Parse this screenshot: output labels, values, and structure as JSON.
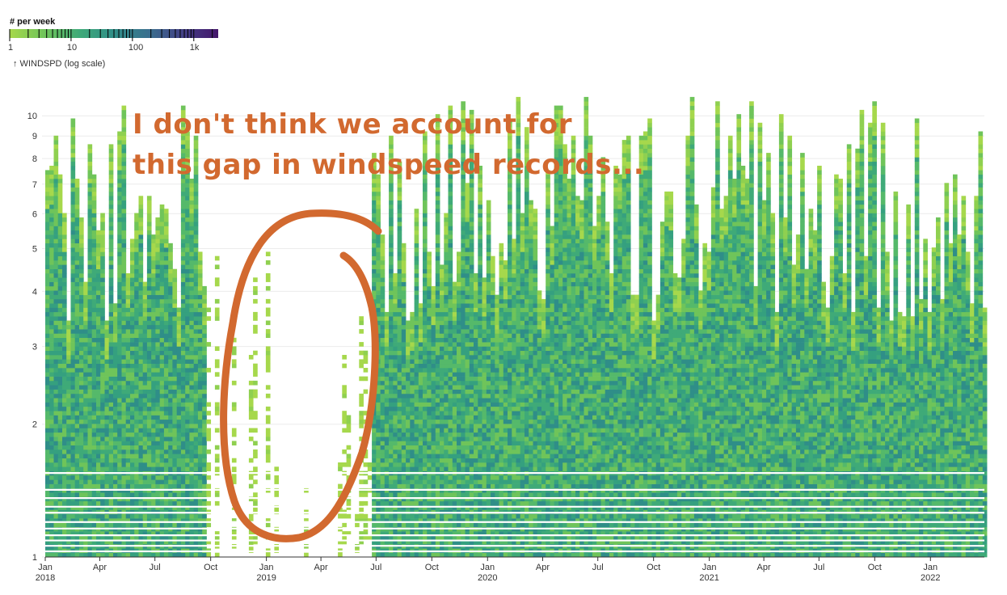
{
  "chart_data": {
    "type": "heatmap",
    "title": "",
    "legend": {
      "title": "# per week",
      "scale": "log",
      "domain": [
        1,
        2500
      ],
      "tick_labels": [
        "1",
        "10",
        "100",
        "1k"
      ],
      "tick_values": [
        1,
        10,
        100,
        1000
      ],
      "colors": [
        "#a6d84c",
        "#6fc45a",
        "#3faa78",
        "#2f8e88",
        "#3a6f8e",
        "#433f86",
        "#44166a"
      ],
      "placement": "top-left"
    },
    "y_axis": {
      "label": "↑ WINDSPD (log scale)",
      "scale": "log",
      "domain": [
        1,
        12
      ],
      "tick_labels": [
        "1",
        "2",
        "3",
        "4",
        "5",
        "6",
        "7",
        "8",
        "9",
        "10"
      ],
      "tick_values": [
        1,
        2,
        3,
        4,
        5,
        6,
        7,
        8,
        9,
        10
      ]
    },
    "x_axis": {
      "label": "",
      "domain": [
        "2018-01-01",
        "2022-03-31"
      ],
      "ticks": [
        {
          "date": "2018-01-01",
          "label": "Jan",
          "sublabel": "2018"
        },
        {
          "date": "2018-04-01",
          "label": "Apr",
          "sublabel": ""
        },
        {
          "date": "2018-07-01",
          "label": "Jul",
          "sublabel": ""
        },
        {
          "date": "2018-10-01",
          "label": "Oct",
          "sublabel": ""
        },
        {
          "date": "2019-01-01",
          "label": "Jan",
          "sublabel": "2019"
        },
        {
          "date": "2019-04-01",
          "label": "Apr",
          "sublabel": ""
        },
        {
          "date": "2019-07-01",
          "label": "Jul",
          "sublabel": ""
        },
        {
          "date": "2019-10-01",
          "label": "Oct",
          "sublabel": ""
        },
        {
          "date": "2020-01-01",
          "label": "Jan",
          "sublabel": "2020"
        },
        {
          "date": "2020-04-01",
          "label": "Apr",
          "sublabel": ""
        },
        {
          "date": "2020-07-01",
          "label": "Jul",
          "sublabel": ""
        },
        {
          "date": "2020-10-01",
          "label": "Oct",
          "sublabel": ""
        },
        {
          "date": "2021-01-01",
          "label": "Jan",
          "sublabel": "2021"
        },
        {
          "date": "2021-04-01",
          "label": "Apr",
          "sublabel": ""
        },
        {
          "date": "2021-07-01",
          "label": "Jul",
          "sublabel": ""
        },
        {
          "date": "2021-10-01",
          "label": "Oct",
          "sublabel": ""
        },
        {
          "date": "2022-01-01",
          "label": "Jan",
          "sublabel": "2022"
        }
      ]
    },
    "data_gap": {
      "start": "2018-09-20",
      "end": "2019-06-20"
    },
    "grid": true,
    "annotation": {
      "text_lines": [
        "I don't think we account for",
        "this gap in windspeed records..."
      ],
      "color": "#d2692f",
      "shape": "hand-drawn circle around data gap"
    }
  }
}
